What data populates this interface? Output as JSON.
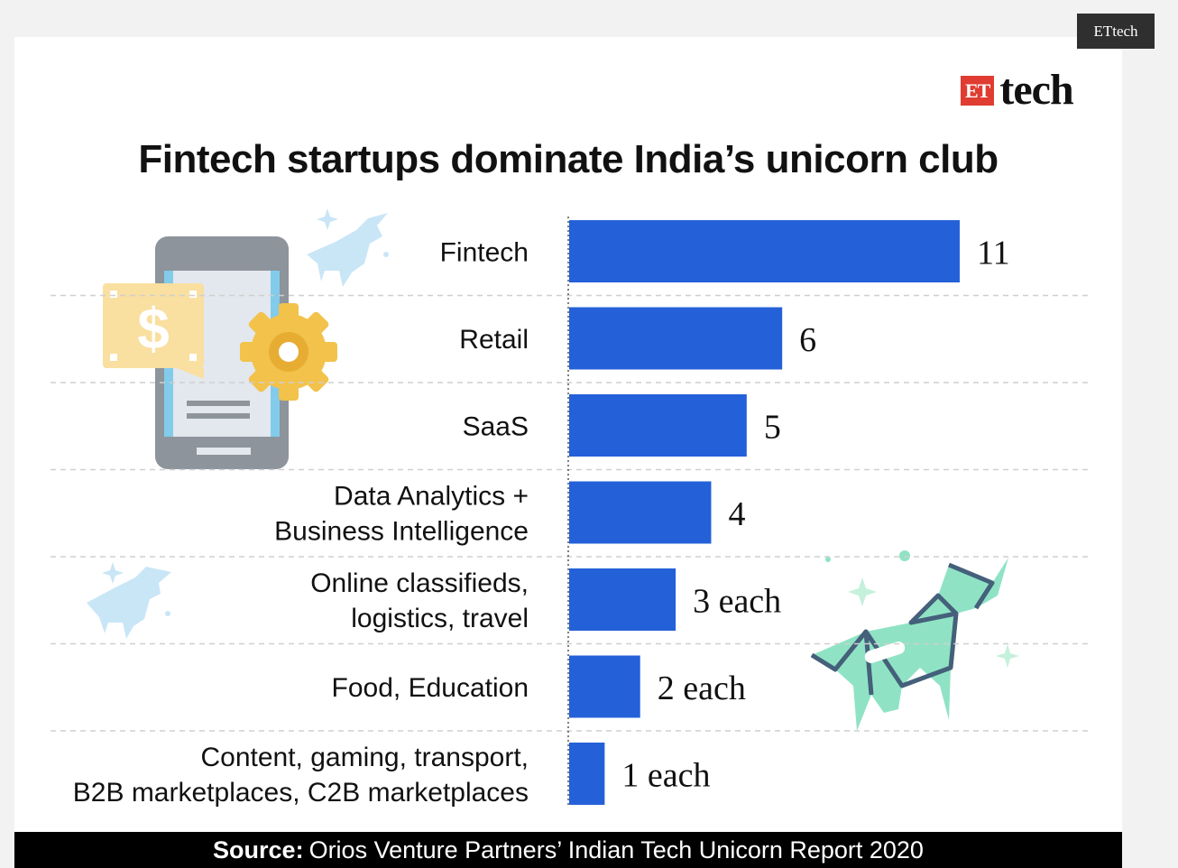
{
  "corner_tag": "ETtech",
  "brand": {
    "box": "ET",
    "word": "tech"
  },
  "colors": {
    "bar": "#2460d8",
    "title": "#111111",
    "grid": "#cfcfcf"
  },
  "chart_data": {
    "type": "bar",
    "orientation": "horizontal",
    "title": "Fintech startups dominate India’s unicorn club",
    "categories": [
      [
        "Fintech"
      ],
      [
        "Retail"
      ],
      [
        "SaaS"
      ],
      [
        "Data Analytics +",
        "Business Intelligence"
      ],
      [
        "Online classifieds,",
        "logistics, travel"
      ],
      [
        "Food, Education"
      ],
      [
        "Content, gaming, transport,",
        "B2B marketplaces, C2B marketplaces"
      ]
    ],
    "values": [
      11,
      6,
      5,
      4,
      3,
      2,
      1
    ],
    "data_labels": [
      "11",
      "6",
      "5",
      "4",
      "3 each",
      "2 each",
      "1 each"
    ],
    "xlim": [
      0,
      11
    ],
    "grid": "dashed row separators",
    "source_label": "Source:",
    "source_text": "Orios Venture Partners’ Indian Tech Unicorn Report 2020"
  },
  "illustrations": [
    "phone-icon",
    "dollar-bill-icon",
    "gear-icon",
    "unicorn-icon",
    "unicorn-icon",
    "origami-unicorn-icon"
  ]
}
